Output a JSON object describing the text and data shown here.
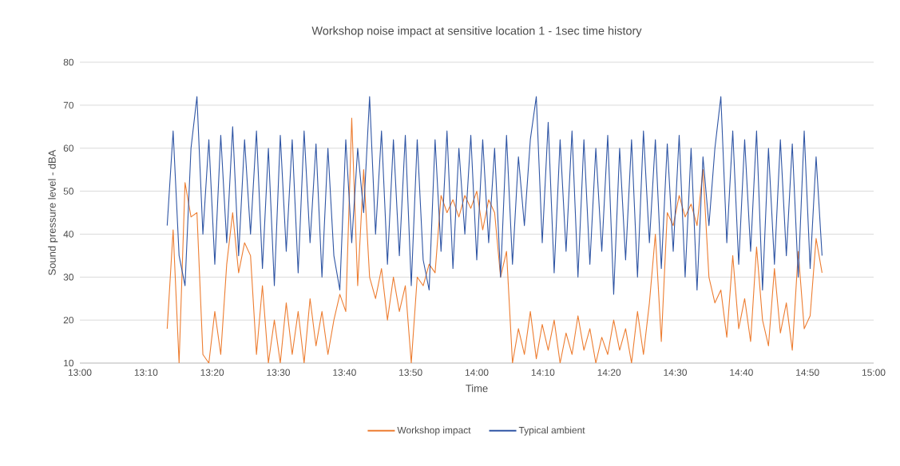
{
  "chart_data": {
    "type": "line",
    "title": "Workshop noise impact at sensitive location 1 - 1sec time history",
    "xlabel": "Time",
    "ylabel": "Sound pressure level - dBA",
    "x": [
      13.22,
      13.235,
      13.25,
      13.265,
      13.28,
      13.295,
      13.31,
      13.325,
      13.34,
      13.355,
      13.37,
      13.385,
      13.4,
      13.415,
      13.43,
      13.445,
      13.46,
      13.475,
      13.49,
      13.505,
      13.52,
      13.535,
      13.55,
      13.565,
      13.58,
      13.595,
      13.61,
      13.625,
      13.64,
      13.655,
      13.67,
      13.685,
      13.7,
      13.715,
      13.73,
      13.745,
      13.76,
      13.775,
      13.79,
      13.805,
      13.82,
      13.835,
      13.85,
      13.865,
      13.88,
      13.895,
      13.91,
      13.925,
      13.94,
      13.955,
      13.97,
      13.985,
      14,
      14.015,
      14.03,
      14.045,
      14.06,
      14.075,
      14.09,
      14.105,
      14.12,
      14.135,
      14.15,
      14.165,
      14.18,
      14.195,
      14.21,
      14.225,
      14.24,
      14.255,
      14.27,
      14.285,
      14.3,
      14.315,
      14.33,
      14.345,
      14.36,
      14.375,
      14.39,
      14.405,
      14.42,
      14.435,
      14.45,
      14.465,
      14.48,
      14.495,
      14.51,
      14.525,
      14.54,
      14.555,
      14.57,
      14.585,
      14.6,
      14.615,
      14.63,
      14.645,
      14.66,
      14.675,
      14.69,
      14.705,
      14.72,
      14.735,
      14.75,
      14.765,
      14.78,
      14.795,
      14.81,
      14.825,
      14.84,
      14.855,
      14.87
    ],
    "series": [
      {
        "name": "Workshop impact",
        "color": "#ed7d31",
        "values": [
          18,
          41,
          10,
          52,
          44,
          45,
          12,
          10,
          22,
          12,
          33,
          45,
          31,
          38,
          35,
          12,
          28,
          10,
          20,
          10,
          24,
          12,
          22,
          10,
          25,
          14,
          22,
          12,
          20,
          26,
          22,
          67,
          28,
          55,
          30,
          25,
          32,
          20,
          30,
          22,
          28,
          10,
          30,
          28,
          33,
          31,
          49,
          45,
          48,
          44,
          49,
          46,
          50,
          41,
          48,
          45,
          30,
          36,
          10,
          18,
          12,
          22,
          11,
          19,
          13,
          20,
          10,
          17,
          12,
          21,
          13,
          18,
          10,
          16,
          12,
          20,
          13,
          18,
          10,
          22,
          12,
          24,
          40,
          15,
          45,
          42,
          49,
          44,
          47,
          42,
          55,
          30,
          24,
          27,
          16,
          35,
          18,
          25,
          15,
          37,
          20,
          14,
          32,
          17,
          24,
          13,
          36,
          18,
          21,
          39,
          31
        ]
      },
      {
        "name": "Typical ambient",
        "color": "#2f55a4",
        "values": [
          42,
          64,
          35,
          28,
          60,
          72,
          40,
          62,
          33,
          63,
          38,
          65,
          35,
          62,
          40,
          64,
          32,
          60,
          28,
          63,
          36,
          62,
          31,
          64,
          38,
          61,
          30,
          60,
          35,
          27,
          62,
          38,
          60,
          45,
          72,
          40,
          64,
          33,
          62,
          35,
          63,
          28,
          62,
          34,
          27,
          62,
          36,
          64,
          32,
          60,
          40,
          63,
          34,
          62,
          38,
          60,
          30,
          63,
          33,
          58,
          42,
          62,
          72,
          38,
          66,
          31,
          62,
          36,
          64,
          30,
          62,
          33,
          60,
          36,
          63,
          26,
          60,
          34,
          62,
          30,
          64,
          38,
          62,
          32,
          61,
          36,
          63,
          30,
          60,
          27,
          58,
          42,
          60,
          72,
          38,
          64,
          33,
          62,
          36,
          64,
          27,
          60,
          33,
          62,
          35,
          61,
          30,
          64,
          32,
          58,
          35
        ]
      }
    ],
    "xlim": [
      13,
      15
    ],
    "xticks": [
      {
        "value": 13,
        "label": "13:00"
      },
      {
        "value": 13.1667,
        "label": "13:10"
      },
      {
        "value": 13.3333,
        "label": "13:20"
      },
      {
        "value": 13.5,
        "label": "13:30"
      },
      {
        "value": 13.6667,
        "label": "13:40"
      },
      {
        "value": 13.8333,
        "label": "13:50"
      },
      {
        "value": 14,
        "label": "14:00"
      },
      {
        "value": 14.1667,
        "label": "14:10"
      },
      {
        "value": 14.3333,
        "label": "14:20"
      },
      {
        "value": 14.5,
        "label": "14:30"
      },
      {
        "value": 14.6667,
        "label": "14:40"
      },
      {
        "value": 14.8333,
        "label": "14:50"
      },
      {
        "value": 15,
        "label": "15:00"
      }
    ],
    "ylim": [
      10,
      80
    ],
    "yticks": [
      10,
      20,
      30,
      40,
      50,
      60,
      70,
      80
    ],
    "grid": "y",
    "legend": "bottom"
  }
}
